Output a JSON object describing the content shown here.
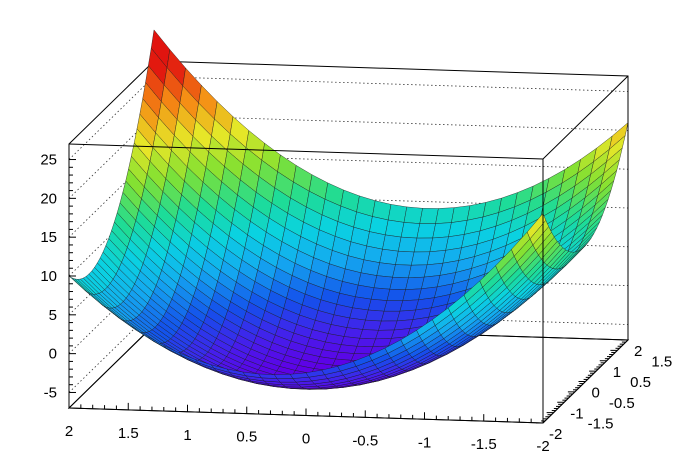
{
  "chart_data": {
    "type": "surface",
    "title": "",
    "function_description": "",
    "x": {
      "label": "",
      "range": [
        -2,
        2
      ],
      "ticks": [
        2,
        1.5,
        1,
        0.5,
        0,
        -0.5,
        -1,
        -1.5,
        -2
      ],
      "tick_labels": [
        "2",
        "1.5",
        "1",
        "0.5",
        "0",
        "-0.5",
        "-1",
        "-1.5",
        "-2"
      ]
    },
    "y": {
      "label": "",
      "range": [
        -2,
        2
      ],
      "ticks": [
        2,
        1.5,
        1,
        0.5,
        0,
        -0.5,
        -1,
        -1.5,
        -2
      ],
      "tick_labels": [
        "2",
        "1.5",
        "1",
        "0.5",
        "0",
        "-0.5",
        "-1",
        "-1.5",
        "-2"
      ]
    },
    "z": {
      "label": "",
      "range": [
        -7,
        27
      ],
      "ticks": [
        -5,
        0,
        5,
        10,
        15,
        20,
        25
      ],
      "tick_labels": [
        "-5",
        "0",
        "5",
        "10",
        "15",
        "20",
        "25"
      ]
    },
    "surface_samples": [
      {
        "x": 2,
        "y": 2,
        "z": 27
      },
      {
        "x": -2,
        "y": 2,
        "z": 26
      },
      {
        "x": 2,
        "y": -2,
        "z": 13
      },
      {
        "x": -2,
        "y": -2,
        "z": 12
      },
      {
        "x": 0,
        "y": 0,
        "z": -6
      }
    ],
    "grid": true,
    "colormap": "rainbow",
    "mesh_lines": true
  }
}
